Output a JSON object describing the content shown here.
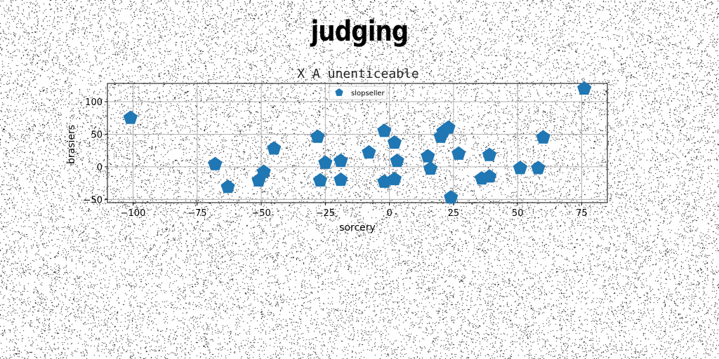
{
  "page": {
    "title": "judging"
  },
  "chart_data": {
    "type": "scatter",
    "title": "X A unenticeable",
    "xlabel": "sorcery",
    "ylabel": "brasiers",
    "xlim": [
      -110,
      85
    ],
    "ylim": [
      -55,
      128
    ],
    "xticks": [
      -100,
      -75,
      -50,
      -25,
      0,
      25,
      50,
      75
    ],
    "yticks": [
      -50,
      0,
      50,
      100
    ],
    "xtick_labels": [
      "−100",
      "−75",
      "−50",
      "−25",
      "0",
      "25",
      "50",
      "75"
    ],
    "ytick_labels": [
      "−50",
      "0",
      "50",
      "100"
    ],
    "grid": true,
    "legend_position": "top-center",
    "marker": "pentagon",
    "color": "#1f77b4",
    "series": [
      {
        "name": "slopseller",
        "x": [
          -101,
          -68,
          -63,
          -51,
          -49,
          -45,
          -28,
          -27,
          -25,
          -19,
          -19,
          -8,
          -2,
          -2,
          2,
          2,
          3,
          15,
          16,
          20,
          21,
          23,
          24,
          27,
          36,
          39,
          39,
          51,
          58,
          60,
          76
        ],
        "y": [
          75,
          4,
          -31,
          -21,
          -8,
          28,
          46,
          -21,
          6,
          -20,
          9,
          22,
          55,
          -23,
          37,
          -19,
          9,
          16,
          -3,
          46,
          54,
          60,
          -47,
          20,
          -18,
          -15,
          18,
          -2,
          -2,
          45,
          120
        ]
      }
    ]
  }
}
